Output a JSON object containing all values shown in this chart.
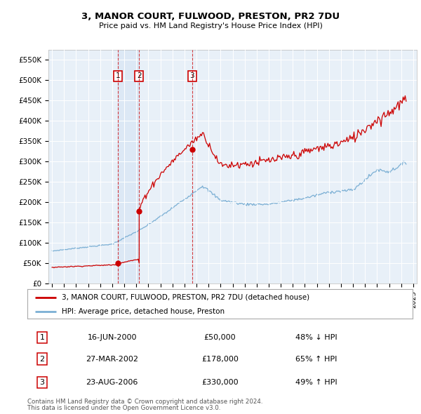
{
  "title": "3, MANOR COURT, FULWOOD, PRESTON, PR2 7DU",
  "subtitle": "Price paid vs. HM Land Registry's House Price Index (HPI)",
  "legend_line1": "3, MANOR COURT, FULWOOD, PRESTON, PR2 7DU (detached house)",
  "legend_line2": "HPI: Average price, detached house, Preston",
  "footer1": "Contains HM Land Registry data © Crown copyright and database right 2024.",
  "footer2": "This data is licensed under the Open Government Licence v3.0.",
  "transactions": [
    {
      "num": 1,
      "price": 50000,
      "x_year": 2000.46
    },
    {
      "num": 2,
      "price": 178000,
      "x_year": 2002.24
    },
    {
      "num": 3,
      "price": 330000,
      "x_year": 2006.64
    }
  ],
  "transaction_labels": [
    {
      "num": "1",
      "date": "16-JUN-2000",
      "price": "£50,000",
      "desc": "48% ↓ HPI"
    },
    {
      "num": "2",
      "date": "27-MAR-2002",
      "price": "£178,000",
      "desc": "65% ↑ HPI"
    },
    {
      "num": "3",
      "date": "23-AUG-2006",
      "price": "£330,000",
      "desc": "49% ↑ HPI"
    }
  ],
  "plot_color_red": "#cc0000",
  "plot_color_blue": "#7bafd4",
  "shade_color": "#dce8f5",
  "background_color": "#e8f0f8",
  "ylim": [
    0,
    575000
  ],
  "yticks": [
    0,
    50000,
    100000,
    150000,
    200000,
    250000,
    300000,
    350000,
    400000,
    450000,
    500000,
    550000
  ],
  "xlim_start": 1994.7,
  "xlim_end": 2025.3
}
